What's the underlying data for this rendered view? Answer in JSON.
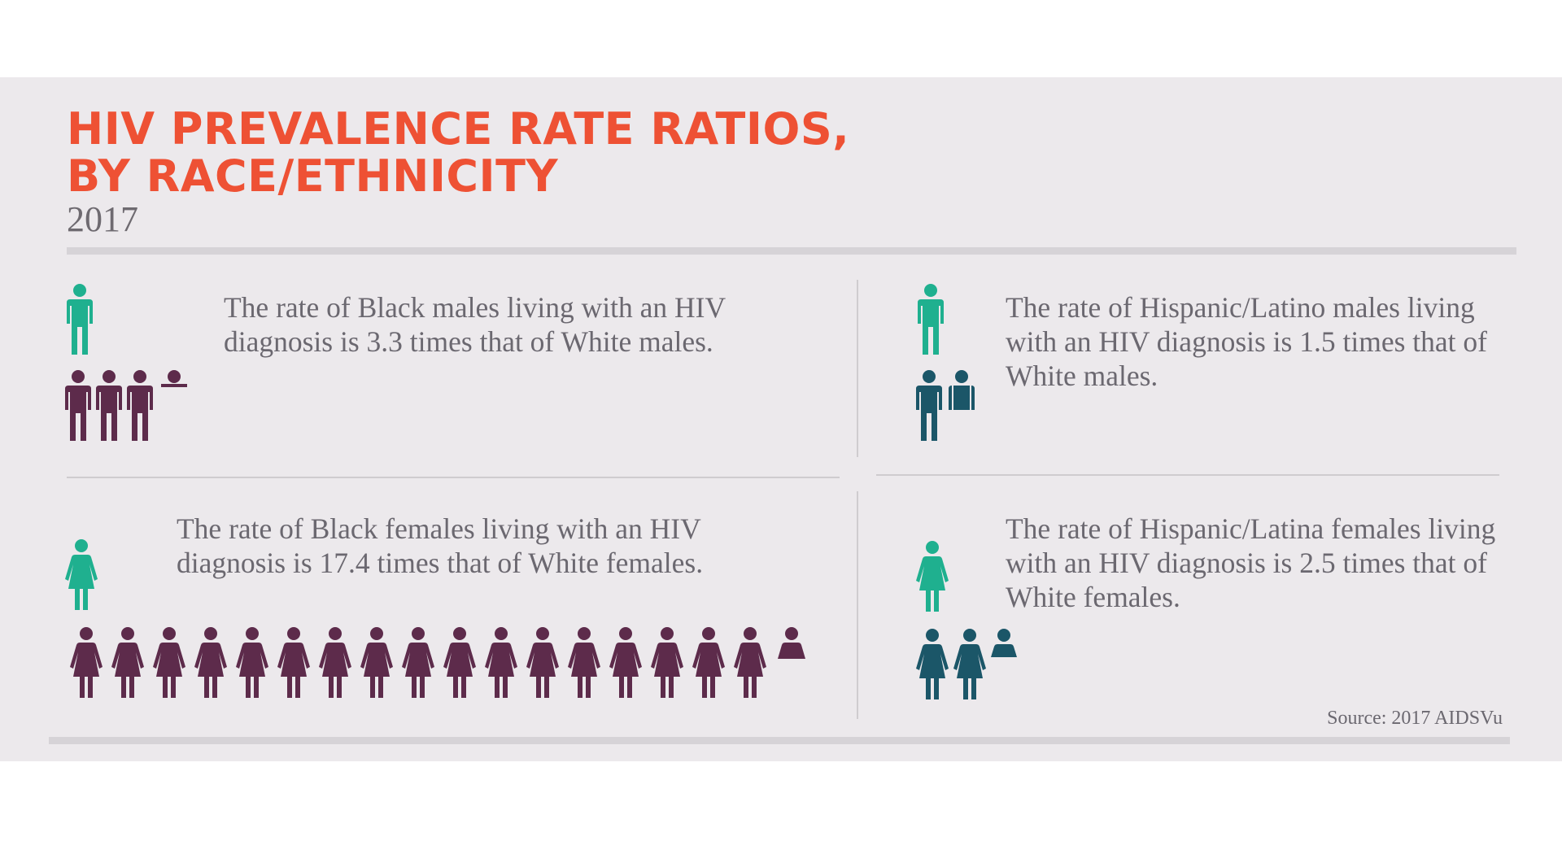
{
  "title": {
    "line1": "HIV PREVALENCE RATE RATIOS,",
    "line2": "BY RACE/ETHNICITY"
  },
  "year": "2017",
  "colors": {
    "title": "#ee5134",
    "white_group": "#1fb08f",
    "black_group": "#5d2b4b",
    "hispanic_group": "#1b5668",
    "background": "#ece9ec",
    "text": "#6b6870"
  },
  "icons": {
    "male": "person-male-icon",
    "female": "person-female-icon"
  },
  "panels": {
    "black_males": {
      "text": "The rate of Black males living with an HIV diagnosis is 3.3 times that of White males.",
      "ratio": 3.3
    },
    "hispanic_males": {
      "text": "The rate of Hispanic/Latino males living with an HIV diagnosis is 1.5 times that of White males.",
      "ratio": 1.5
    },
    "black_females": {
      "text": "The rate of Black females living with an HIV diagnosis is 17.4 times that of White females.",
      "ratio": 17.4
    },
    "hispanic_females": {
      "text": "The rate of Hispanic/Latina females living with an HIV diagnosis is 2.5 times that of White females.",
      "ratio": 2.5
    }
  },
  "source": "Source: 2017 AIDSVu"
}
